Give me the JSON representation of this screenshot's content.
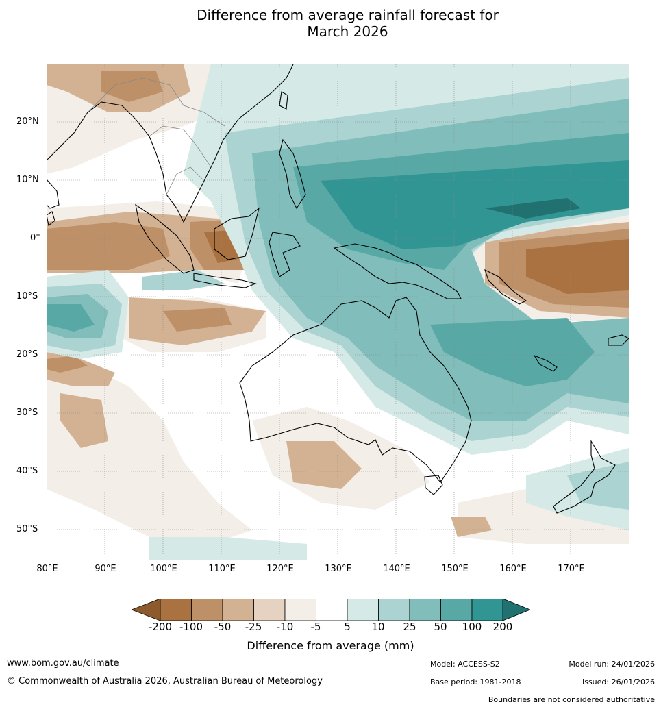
{
  "title": {
    "line1": "Difference from average rainfall forecast for",
    "line2": "March 2026"
  },
  "map": {
    "region": "Maritime Continent, Indian Ocean, Australia and western Pacific",
    "lat_labels": [
      "20°N",
      "10°N",
      "0°",
      "10°S",
      "20°S",
      "30°S",
      "40°S",
      "50°S"
    ],
    "lon_labels": [
      "80°E",
      "90°E",
      "100°E",
      "110°E",
      "120°E",
      "130°E",
      "140°E",
      "150°E",
      "160°E",
      "170°E"
    ]
  },
  "legend": {
    "title": "Difference from average (mm)",
    "tick_labels": [
      "-200",
      "-100",
      "-50",
      "-25",
      "-10",
      "-5",
      "5",
      "10",
      "25",
      "50",
      "100",
      "200"
    ],
    "colors": [
      "#8c5a2c",
      "#a97240",
      "#be9067",
      "#d3b294",
      "#e6d2c0",
      "#f3eee8",
      "#ffffff",
      "#d5e9e7",
      "#aad3d1",
      "#80bdbb",
      "#58a8a6",
      "#319593",
      "#207170"
    ]
  },
  "footer": {
    "website": "www.bom.gov.au/climate",
    "copyright": "© Commonwealth of Australia 2026, Australian Bureau of Meteorology",
    "model": "Model: ACCESS-S2",
    "base_period": "Base period: 1981-2018",
    "model_run": "Model run: 24/01/2026",
    "issued": "Issued: 26/01/2026",
    "disclaimer": "Boundaries are not considered authoritative"
  }
}
